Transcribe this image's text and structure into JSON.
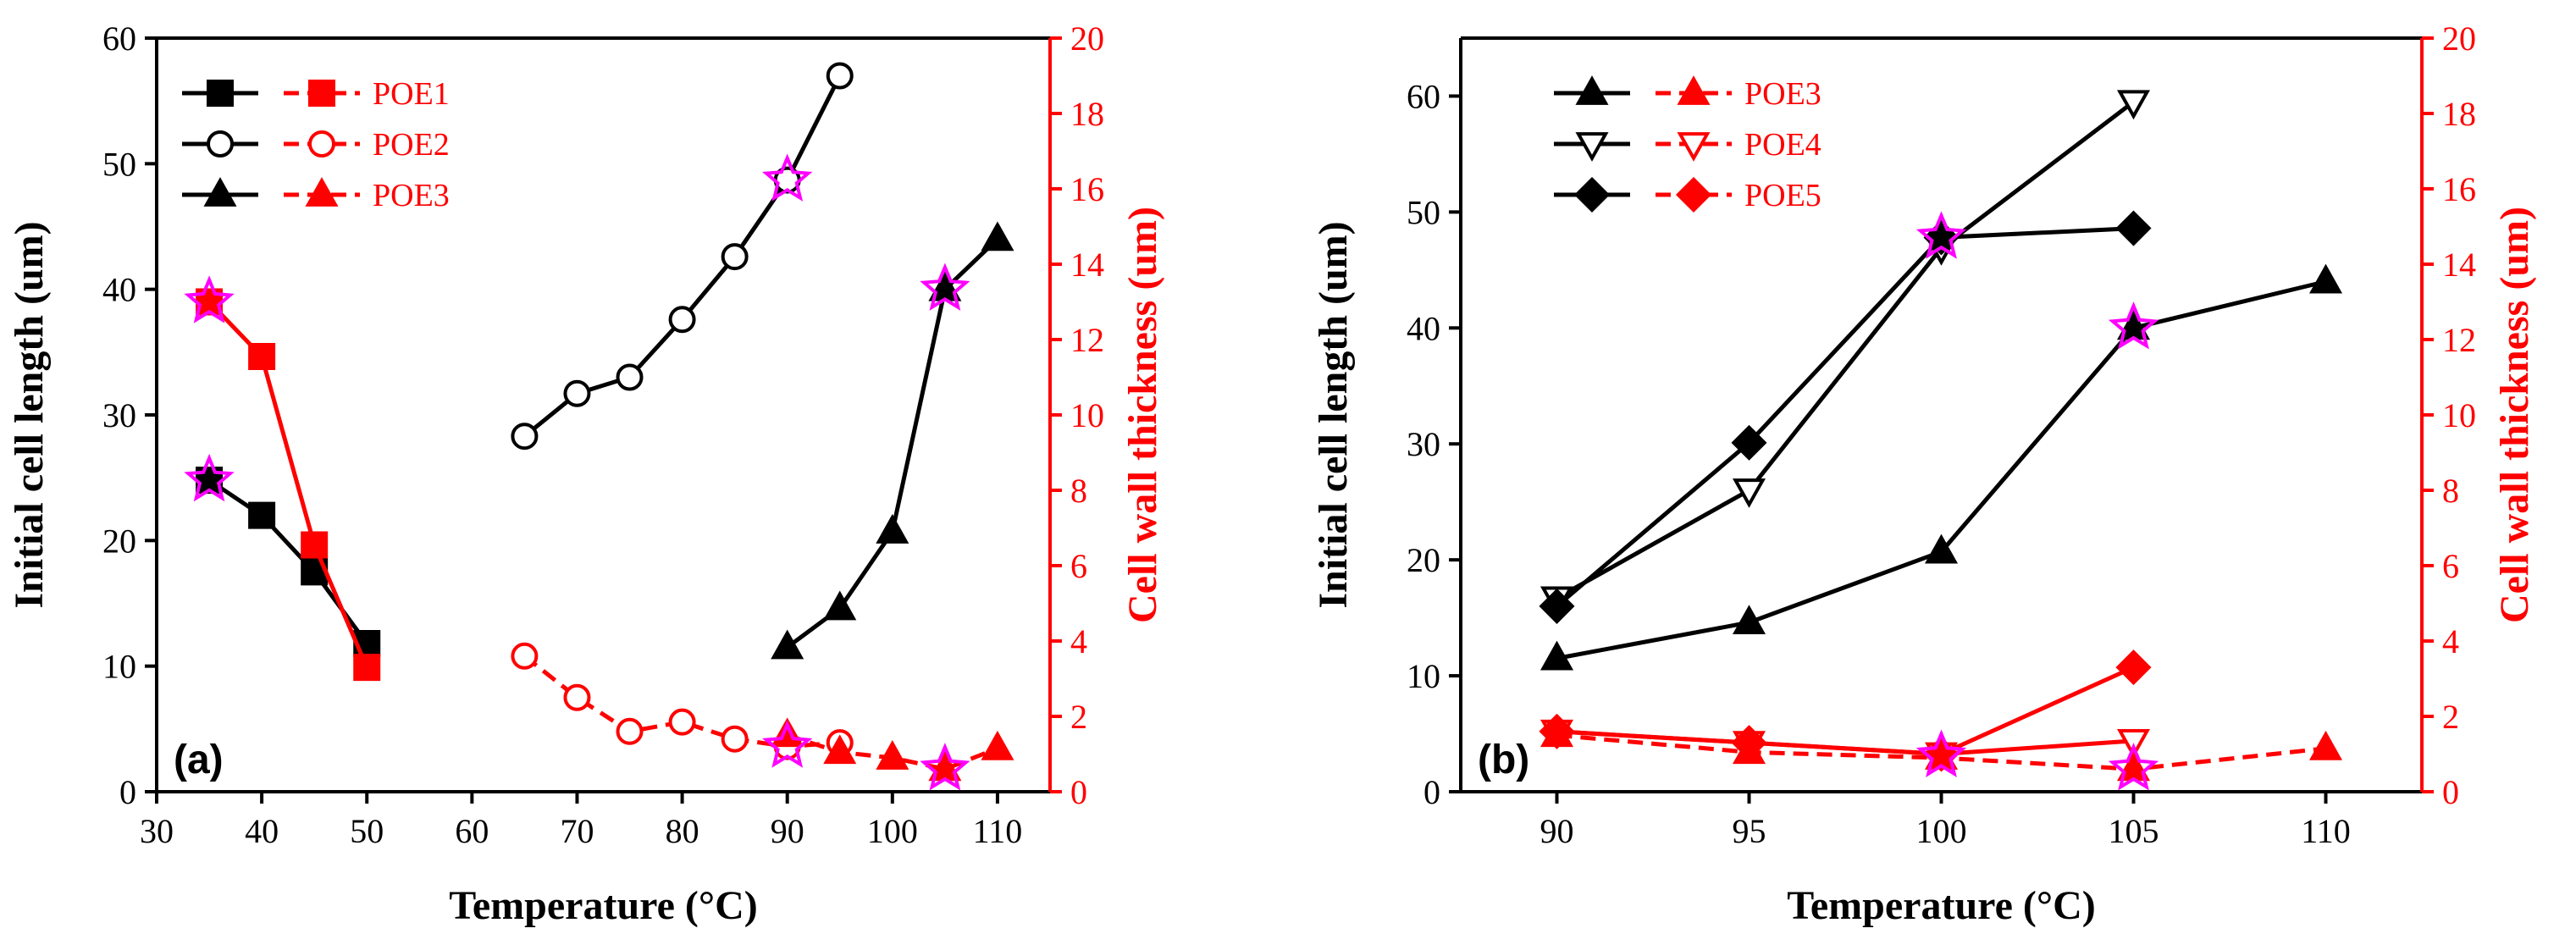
{
  "chart_data": [
    {
      "type": "line",
      "panel_label": "(a)",
      "xlabel": "Temperature (°C)",
      "ylabel": "Initial cell length (um)",
      "y2label": "Cell wall thickness (um)",
      "xlim": [
        30,
        115
      ],
      "xticks": [
        30,
        40,
        50,
        60,
        70,
        80,
        90,
        100,
        110
      ],
      "ylim": [
        0,
        60
      ],
      "yticks": [
        0,
        10,
        20,
        30,
        40,
        50,
        60
      ],
      "y2lim": [
        0,
        20
      ],
      "y2ticks": [
        0,
        2,
        4,
        6,
        8,
        10,
        12,
        14,
        16,
        18,
        20
      ],
      "legend_position": "top-left",
      "series": [
        {
          "name": "POE1",
          "axis": "left",
          "color": "#000000",
          "marker": "square",
          "filled": true,
          "dashed": false,
          "x": [
            35,
            40,
            45,
            50
          ],
          "y": [
            24.8,
            22,
            17.5,
            11.8
          ]
        },
        {
          "name": "POE1",
          "axis": "right",
          "color": "#ff0000",
          "marker": "square",
          "filled": true,
          "dashed": false,
          "x": [
            35,
            40,
            45,
            50
          ],
          "y": [
            13,
            11.55,
            6.55,
            3.3
          ]
        },
        {
          "name": "POE2",
          "axis": "left",
          "color": "#000000",
          "marker": "circle",
          "filled": false,
          "dashed": false,
          "x": [
            65,
            70,
            75,
            80,
            85,
            90,
            95
          ],
          "y": [
            28.3,
            31.7,
            33,
            37.6,
            42.6,
            48.7,
            57
          ]
        },
        {
          "name": "POE2",
          "axis": "right",
          "color": "#ff0000",
          "marker": "circle",
          "filled": false,
          "dashed": true,
          "x": [
            65,
            70,
            75,
            80,
            85,
            90,
            95
          ],
          "y": [
            3.6,
            2.5,
            1.6,
            1.85,
            1.4,
            1.2,
            1.3
          ]
        },
        {
          "name": "POE3",
          "axis": "left",
          "color": "#000000",
          "marker": "triangle",
          "filled": true,
          "dashed": false,
          "x": [
            90,
            95,
            100,
            105,
            110
          ],
          "y": [
            11.5,
            14.6,
            20.7,
            40,
            44
          ]
        },
        {
          "name": "POE3",
          "axis": "right",
          "color": "#ff0000",
          "marker": "triangle",
          "filled": true,
          "dashed": true,
          "x": [
            90,
            95,
            100,
            105,
            110
          ],
          "y": [
            1.5,
            1.05,
            0.9,
            0.6,
            1.15
          ]
        }
      ],
      "highlights": [
        {
          "axis": "left",
          "x": 35,
          "y": 24.8
        },
        {
          "axis": "right",
          "x": 35,
          "y": 13
        },
        {
          "axis": "left",
          "x": 90,
          "y": 48.7
        },
        {
          "axis": "right",
          "x": 90,
          "y": 1.2
        },
        {
          "axis": "left",
          "x": 105,
          "y": 40
        },
        {
          "axis": "right",
          "x": 105,
          "y": 0.6
        }
      ],
      "highlight_color": "#ff00ff"
    },
    {
      "type": "line",
      "panel_label": "(b)",
      "xlabel": "Temperature (°C)",
      "ylabel": "Initial cell length (um)",
      "y2label": "Cell wall thickness (um)",
      "xlim": [
        87.5,
        112.5
      ],
      "xticks": [
        90,
        95,
        100,
        105,
        110
      ],
      "ylim": [
        0,
        65
      ],
      "yticks": [
        0,
        10,
        20,
        30,
        40,
        50,
        60
      ],
      "y2lim": [
        0,
        20
      ],
      "y2ticks": [
        0,
        2,
        4,
        6,
        8,
        10,
        12,
        14,
        16,
        18,
        20
      ],
      "legend_position": "top-left",
      "series": [
        {
          "name": "POE3",
          "axis": "left",
          "color": "#000000",
          "marker": "triangle",
          "filled": true,
          "dashed": false,
          "x": [
            90,
            95,
            100,
            105,
            110
          ],
          "y": [
            11.5,
            14.6,
            20.7,
            40,
            44
          ]
        },
        {
          "name": "POE3",
          "axis": "right",
          "color": "#ff0000",
          "marker": "triangle",
          "filled": true,
          "dashed": true,
          "x": [
            90,
            95,
            100,
            105,
            110
          ],
          "y": [
            1.5,
            1.05,
            0.9,
            0.6,
            1.15
          ]
        },
        {
          "name": "POE4",
          "axis": "left",
          "color": "#000000",
          "marker": "triangle-down",
          "filled": false,
          "dashed": false,
          "x": [
            90,
            95,
            100,
            105
          ],
          "y": [
            16.7,
            26,
            46.9,
            59.5
          ]
        },
        {
          "name": "POE4",
          "axis": "right",
          "color": "#ff0000",
          "marker": "triangle-down",
          "filled": false,
          "dashed": false,
          "x": [
            90,
            95,
            100,
            105
          ],
          "y": [
            1.6,
            1.3,
            1.0,
            1.35
          ]
        },
        {
          "name": "POE5",
          "axis": "left",
          "color": "#000000",
          "marker": "diamond",
          "filled": true,
          "dashed": false,
          "x": [
            90,
            95,
            100,
            105
          ],
          "y": [
            16,
            30.1,
            47.8,
            48.6
          ]
        },
        {
          "name": "POE5",
          "axis": "right",
          "color": "#ff0000",
          "marker": "diamond",
          "filled": true,
          "dashed": false,
          "x": [
            90,
            95,
            100,
            105
          ],
          "y": [
            1.6,
            1.3,
            1.0,
            3.3
          ]
        }
      ],
      "highlights": [
        {
          "axis": "left",
          "x": 100,
          "y": 47.8
        },
        {
          "axis": "right",
          "x": 100,
          "y": 0.95
        },
        {
          "axis": "left",
          "x": 105,
          "y": 40
        },
        {
          "axis": "right",
          "x": 105,
          "y": 0.6
        }
      ],
      "highlight_color": "#ff00ff"
    }
  ]
}
